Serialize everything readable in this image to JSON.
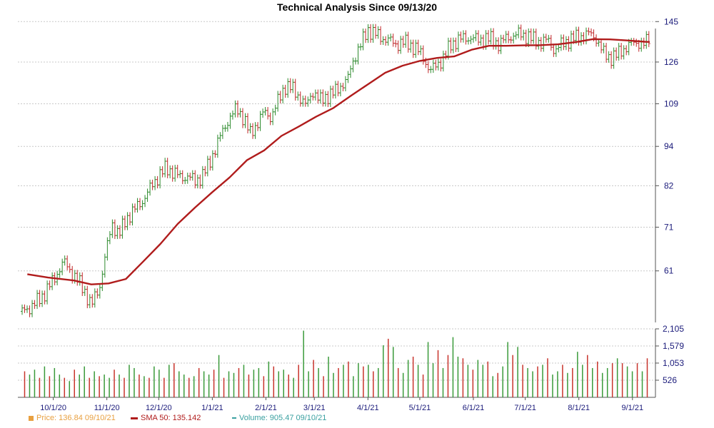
{
  "chart_data": {
    "type": "line",
    "title": "Technical Analysis Since 09/13/20",
    "price_axis": {
      "ticks": [
        61,
        71,
        82,
        94,
        109,
        126,
        145
      ],
      "range": [
        51,
        148
      ]
    },
    "volume_axis": {
      "ticks": [
        "2,105",
        "1,579",
        "1,053",
        "526"
      ],
      "tick_values": [
        2105,
        1579,
        1053,
        526
      ],
      "range": [
        0,
        2105
      ]
    },
    "x_axis": {
      "labels": [
        "10/1/20",
        "11/1/20",
        "12/1/20",
        "1/1/21",
        "2/1/21",
        "3/1/21",
        "4/1/21",
        "5/1/21",
        "6/1/21",
        "7/1/21",
        "8/1/21",
        "9/1/21"
      ],
      "label_days": [
        18,
        49,
        79,
        110,
        141,
        169,
        200,
        230,
        261,
        291,
        322,
        353
      ],
      "day_range": [
        0,
        363
      ]
    },
    "grid": true,
    "series": [
      {
        "name": "Price",
        "kind": "ohlc",
        "points": [
          [
            0,
            53
          ],
          [
            6,
            54
          ],
          [
            12,
            56
          ],
          [
            18,
            59
          ],
          [
            24,
            63
          ],
          [
            30,
            60
          ],
          [
            36,
            57
          ],
          [
            40,
            54
          ],
          [
            45,
            58
          ],
          [
            49,
            66
          ],
          [
            52,
            72
          ],
          [
            56,
            69
          ],
          [
            60,
            73
          ],
          [
            66,
            76
          ],
          [
            70,
            78
          ],
          [
            75,
            82
          ],
          [
            79,
            85
          ],
          [
            83,
            87
          ],
          [
            88,
            86
          ],
          [
            92,
            84
          ],
          [
            96,
            85
          ],
          [
            100,
            83
          ],
          [
            104,
            85
          ],
          [
            108,
            88
          ],
          [
            112,
            94
          ],
          [
            116,
            99
          ],
          [
            120,
            104
          ],
          [
            124,
            107
          ],
          [
            128,
            104
          ],
          [
            132,
            98
          ],
          [
            136,
            102
          ],
          [
            140,
            106
          ],
          [
            144,
            104
          ],
          [
            148,
            110
          ],
          [
            152,
            116
          ],
          [
            156,
            115
          ],
          [
            160,
            112
          ],
          [
            164,
            108
          ],
          [
            168,
            114
          ],
          [
            172,
            110
          ],
          [
            176,
            112
          ],
          [
            180,
            113
          ],
          [
            184,
            116
          ],
          [
            188,
            118
          ],
          [
            192,
            128
          ],
          [
            196,
            134
          ],
          [
            200,
            141
          ],
          [
            204,
            139
          ],
          [
            208,
            137
          ],
          [
            212,
            136
          ],
          [
            216,
            134
          ],
          [
            220,
            135
          ],
          [
            224,
            134
          ],
          [
            228,
            132
          ],
          [
            232,
            128
          ],
          [
            236,
            122
          ],
          [
            240,
            125
          ],
          [
            244,
            128
          ],
          [
            248,
            134
          ],
          [
            252,
            136
          ],
          [
            256,
            137
          ],
          [
            260,
            137
          ],
          [
            264,
            136
          ],
          [
            268,
            137
          ],
          [
            272,
            136
          ],
          [
            276,
            134
          ],
          [
            280,
            137
          ],
          [
            284,
            138
          ],
          [
            288,
            139
          ],
          [
            292,
            138
          ],
          [
            296,
            136
          ],
          [
            300,
            135
          ],
          [
            304,
            136
          ],
          [
            308,
            131
          ],
          [
            312,
            134
          ],
          [
            316,
            136
          ],
          [
            320,
            137
          ],
          [
            324,
            138
          ],
          [
            328,
            139
          ],
          [
            332,
            137
          ],
          [
            336,
            130
          ],
          [
            340,
            128
          ],
          [
            344,
            129
          ],
          [
            348,
            132
          ],
          [
            352,
            134
          ],
          [
            356,
            135
          ],
          [
            360,
            134
          ],
          [
            363,
            137
          ]
        ],
        "color": "#2e8b57"
      },
      {
        "name": "SMA 50",
        "kind": "line",
        "points": [
          [
            3,
            60.3
          ],
          [
            15,
            59.6
          ],
          [
            30,
            59.0
          ],
          [
            40,
            58.2
          ],
          [
            50,
            58.4
          ],
          [
            60,
            59.3
          ],
          [
            70,
            63.0
          ],
          [
            80,
            67.0
          ],
          [
            90,
            71.8
          ],
          [
            100,
            76.0
          ],
          [
            110,
            80.2
          ],
          [
            120,
            84.4
          ],
          [
            130,
            89.6
          ],
          [
            140,
            92.7
          ],
          [
            150,
            97.5
          ],
          [
            160,
            100.7
          ],
          [
            170,
            104.2
          ],
          [
            180,
            107.4
          ],
          [
            190,
            112.0
          ],
          [
            200,
            116.6
          ],
          [
            210,
            121.4
          ],
          [
            220,
            124.4
          ],
          [
            230,
            126.5
          ],
          [
            240,
            127.8
          ],
          [
            250,
            128.5
          ],
          [
            260,
            131.5
          ],
          [
            270,
            133.3
          ],
          [
            280,
            133.3
          ],
          [
            290,
            133.5
          ],
          [
            300,
            133.6
          ],
          [
            310,
            134.0
          ],
          [
            320,
            135.0
          ],
          [
            330,
            136.4
          ],
          [
            340,
            136.3
          ],
          [
            350,
            135.8
          ],
          [
            360,
            135.2
          ],
          [
            363,
            135.1
          ]
        ],
        "color": "#b01c1c"
      },
      {
        "name": "Volume",
        "kind": "bar",
        "values": [
          800,
          700,
          850,
          600,
          950,
          650,
          900,
          700,
          600,
          500,
          850,
          700,
          950,
          600,
          800,
          650,
          700,
          600,
          850,
          700,
          600,
          1000,
          900,
          700,
          650,
          600,
          950,
          850,
          600,
          1000,
          1050,
          800,
          700,
          600,
          650,
          900,
          800,
          700,
          850,
          1300,
          600,
          800,
          750,
          900,
          1000,
          700,
          850,
          900,
          650,
          1100,
          950,
          800,
          850,
          700,
          600,
          1000,
          2050,
          800,
          1150,
          900,
          650,
          1250,
          750,
          900,
          1000,
          1100,
          650,
          1050,
          950,
          1000,
          800,
          900,
          1600,
          1800,
          1550,
          900,
          750,
          1150,
          1250,
          1000,
          700,
          1700,
          1050,
          1450,
          900,
          1300,
          1850,
          1250,
          1200,
          1000,
          850,
          1150,
          1000,
          1100,
          650,
          750,
          950,
          1700,
          1300,
          1550,
          1000,
          900,
          800,
          950,
          1000,
          1200,
          700,
          800,
          1000,
          750,
          900,
          1400,
          1000,
          1300,
          900,
          1100,
          750,
          900,
          1050,
          1200,
          1050,
          950,
          800,
          1050,
          800,
          1200
        ],
        "color": "#2e8b57"
      }
    ],
    "legend": [
      {
        "label": "Price: 136.84  09/10/21",
        "color": "#e8a040",
        "symbol": "square"
      },
      {
        "label": "SMA 50: 135.142",
        "color": "#b01c1c",
        "symbol": "line"
      },
      {
        "label": "Volume: 905.47  09/10/21",
        "color": "#3aa0a0",
        "symbol": "dash"
      }
    ]
  }
}
